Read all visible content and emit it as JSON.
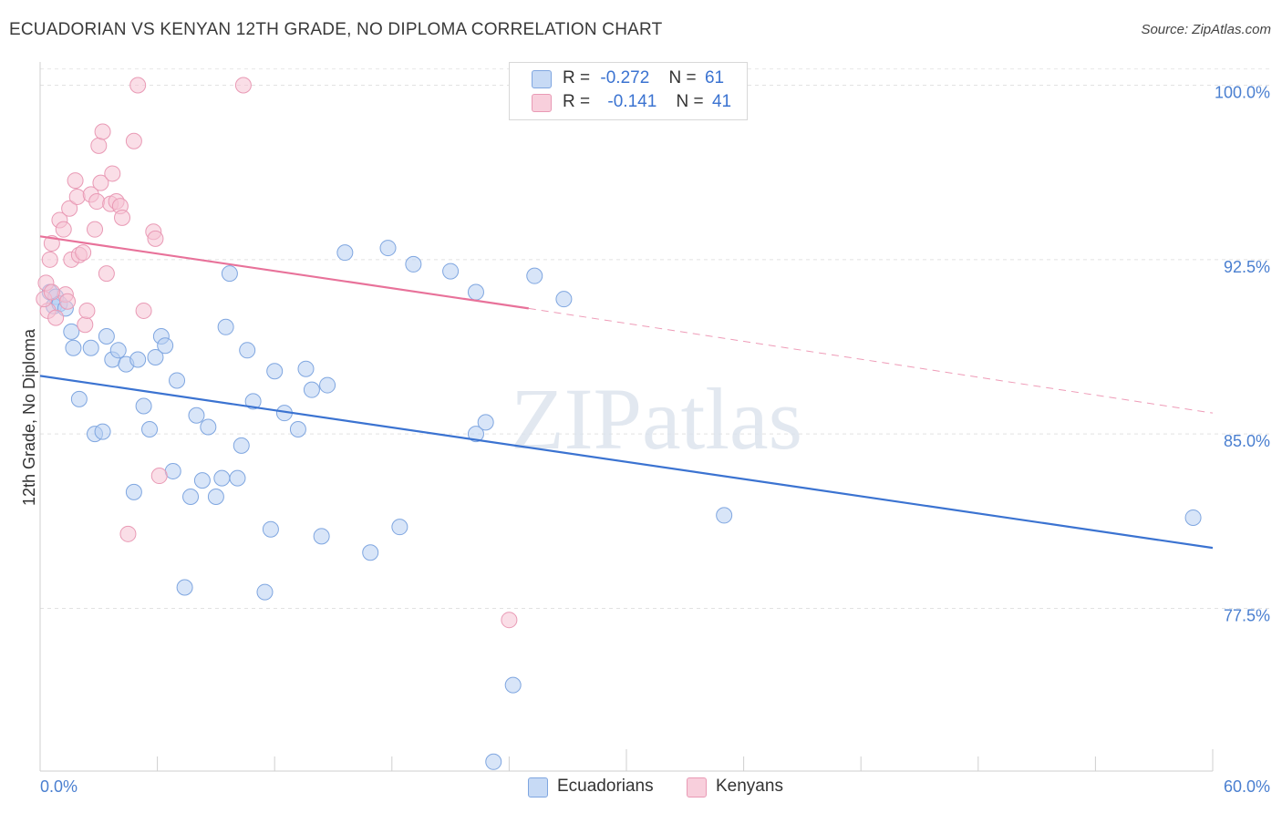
{
  "title": "ECUADORIAN VS KENYAN 12TH GRADE, NO DIPLOMA CORRELATION CHART",
  "source": "Source: ZipAtlas.com",
  "watermark": "ZIPatlas",
  "colors": {
    "blue": "#3b73d1",
    "blue_fill": "#b8d0f3",
    "pink": "#e8729a",
    "pink_fill": "#f6c2d3",
    "tick_text": "#4a7fd0",
    "grid": "#dddddd"
  },
  "legend": {
    "rows": [
      {
        "r_label": "R =",
        "r_value": "-0.272",
        "n_label": "N =",
        "n_value": "61"
      },
      {
        "r_label": "R =",
        "r_value": "-0.141",
        "n_label": "N =",
        "n_value": "41"
      }
    ]
  },
  "bottom_legend": {
    "ecuadorians": "Ecuadorians",
    "kenyans": "Kenyans"
  },
  "chart_data": {
    "type": "scatter",
    "title": "ECUADORIAN VS KENYAN 12TH GRADE, NO DIPLOMA CORRELATION CHART",
    "xlabel": "",
    "ylabel": "12th Grade, No Diploma",
    "xlim": [
      0,
      60
    ],
    "ylim": [
      70.5,
      101.0
    ],
    "x_tick_labels": [
      "0.0%",
      "60.0%"
    ],
    "y_ticks": [
      77.5,
      85.0,
      92.5,
      100.0
    ],
    "y_tick_labels": [
      "77.5%",
      "85.0%",
      "92.5%",
      "100.0%"
    ],
    "grid": true,
    "legend_placement": "top-center",
    "series": [
      {
        "name": "Ecuadorians",
        "r": -0.272,
        "n": 61,
        "trend": {
          "x": [
            0,
            60
          ],
          "y": [
            87.5,
            80.1
          ]
        },
        "points": [
          [
            0.5,
            91.1
          ],
          [
            0.8,
            90.9
          ],
          [
            0.7,
            90.5
          ],
          [
            1.0,
            90.6
          ],
          [
            1.3,
            90.4
          ],
          [
            1.6,
            89.4
          ],
          [
            1.7,
            88.7
          ],
          [
            2.0,
            86.5
          ],
          [
            2.6,
            88.7
          ],
          [
            2.8,
            85.0
          ],
          [
            3.2,
            85.1
          ],
          [
            3.4,
            89.2
          ],
          [
            3.7,
            88.2
          ],
          [
            4.0,
            88.6
          ],
          [
            4.4,
            88.0
          ],
          [
            4.8,
            82.5
          ],
          [
            5.0,
            88.2
          ],
          [
            5.3,
            86.2
          ],
          [
            5.6,
            85.2
          ],
          [
            5.9,
            88.3
          ],
          [
            6.2,
            89.2
          ],
          [
            6.4,
            88.8
          ],
          [
            6.8,
            83.4
          ],
          [
            7.0,
            87.3
          ],
          [
            7.4,
            78.4
          ],
          [
            7.7,
            82.3
          ],
          [
            8.0,
            85.8
          ],
          [
            8.3,
            83.0
          ],
          [
            8.6,
            85.3
          ],
          [
            9.0,
            82.3
          ],
          [
            9.3,
            83.1
          ],
          [
            9.5,
            89.6
          ],
          [
            9.7,
            91.9
          ],
          [
            10.1,
            83.1
          ],
          [
            10.3,
            84.5
          ],
          [
            10.6,
            88.6
          ],
          [
            10.9,
            86.4
          ],
          [
            11.5,
            78.2
          ],
          [
            11.8,
            80.9
          ],
          [
            12.0,
            87.7
          ],
          [
            12.5,
            85.9
          ],
          [
            13.2,
            85.2
          ],
          [
            13.6,
            87.8
          ],
          [
            13.9,
            86.9
          ],
          [
            14.4,
            80.6
          ],
          [
            14.7,
            87.1
          ],
          [
            15.6,
            92.8
          ],
          [
            16.9,
            79.9
          ],
          [
            17.8,
            93.0
          ],
          [
            18.4,
            81.0
          ],
          [
            19.1,
            92.3
          ],
          [
            21.0,
            92.0
          ],
          [
            22.3,
            91.1
          ],
          [
            22.3,
            85.0
          ],
          [
            22.8,
            85.5
          ],
          [
            23.2,
            70.9
          ],
          [
            24.2,
            74.2
          ],
          [
            25.3,
            91.8
          ],
          [
            26.8,
            90.8
          ],
          [
            35.0,
            81.5
          ],
          [
            59.0,
            81.4
          ]
        ]
      },
      {
        "name": "Kenyans",
        "r": -0.141,
        "n": 41,
        "trend": {
          "x": [
            0,
            25.0
          ],
          "y": [
            93.5,
            90.4
          ]
        },
        "trend_dashed": {
          "x": [
            25.0,
            60
          ],
          "y": [
            90.4,
            85.9
          ]
        },
        "points": [
          [
            0.3,
            91.5
          ],
          [
            0.4,
            90.3
          ],
          [
            0.5,
            92.5
          ],
          [
            0.6,
            93.2
          ],
          [
            0.8,
            90.0
          ],
          [
            1.0,
            94.2
          ],
          [
            1.2,
            93.8
          ],
          [
            1.3,
            91.0
          ],
          [
            1.4,
            90.7
          ],
          [
            1.5,
            94.7
          ],
          [
            1.6,
            92.5
          ],
          [
            1.8,
            95.9
          ],
          [
            1.9,
            95.2
          ],
          [
            2.0,
            92.7
          ],
          [
            2.2,
            92.8
          ],
          [
            2.3,
            89.7
          ],
          [
            2.4,
            90.3
          ],
          [
            2.6,
            95.3
          ],
          [
            2.8,
            93.8
          ],
          [
            2.9,
            95.0
          ],
          [
            3.0,
            97.4
          ],
          [
            3.1,
            95.8
          ],
          [
            3.2,
            98.0
          ],
          [
            3.4,
            91.9
          ],
          [
            3.6,
            94.9
          ],
          [
            3.7,
            96.2
          ],
          [
            3.9,
            95.0
          ],
          [
            4.1,
            94.8
          ],
          [
            4.2,
            94.3
          ],
          [
            4.5,
            80.7
          ],
          [
            4.8,
            97.6
          ],
          [
            5.0,
            100.0
          ],
          [
            5.3,
            90.3
          ],
          [
            5.8,
            93.7
          ],
          [
            5.9,
            93.4
          ],
          [
            6.1,
            83.2
          ],
          [
            10.4,
            100.0
          ],
          [
            24.0,
            77.0
          ],
          [
            24.7,
            100.0
          ],
          [
            0.2,
            90.8
          ],
          [
            0.6,
            91.1
          ]
        ]
      }
    ]
  }
}
